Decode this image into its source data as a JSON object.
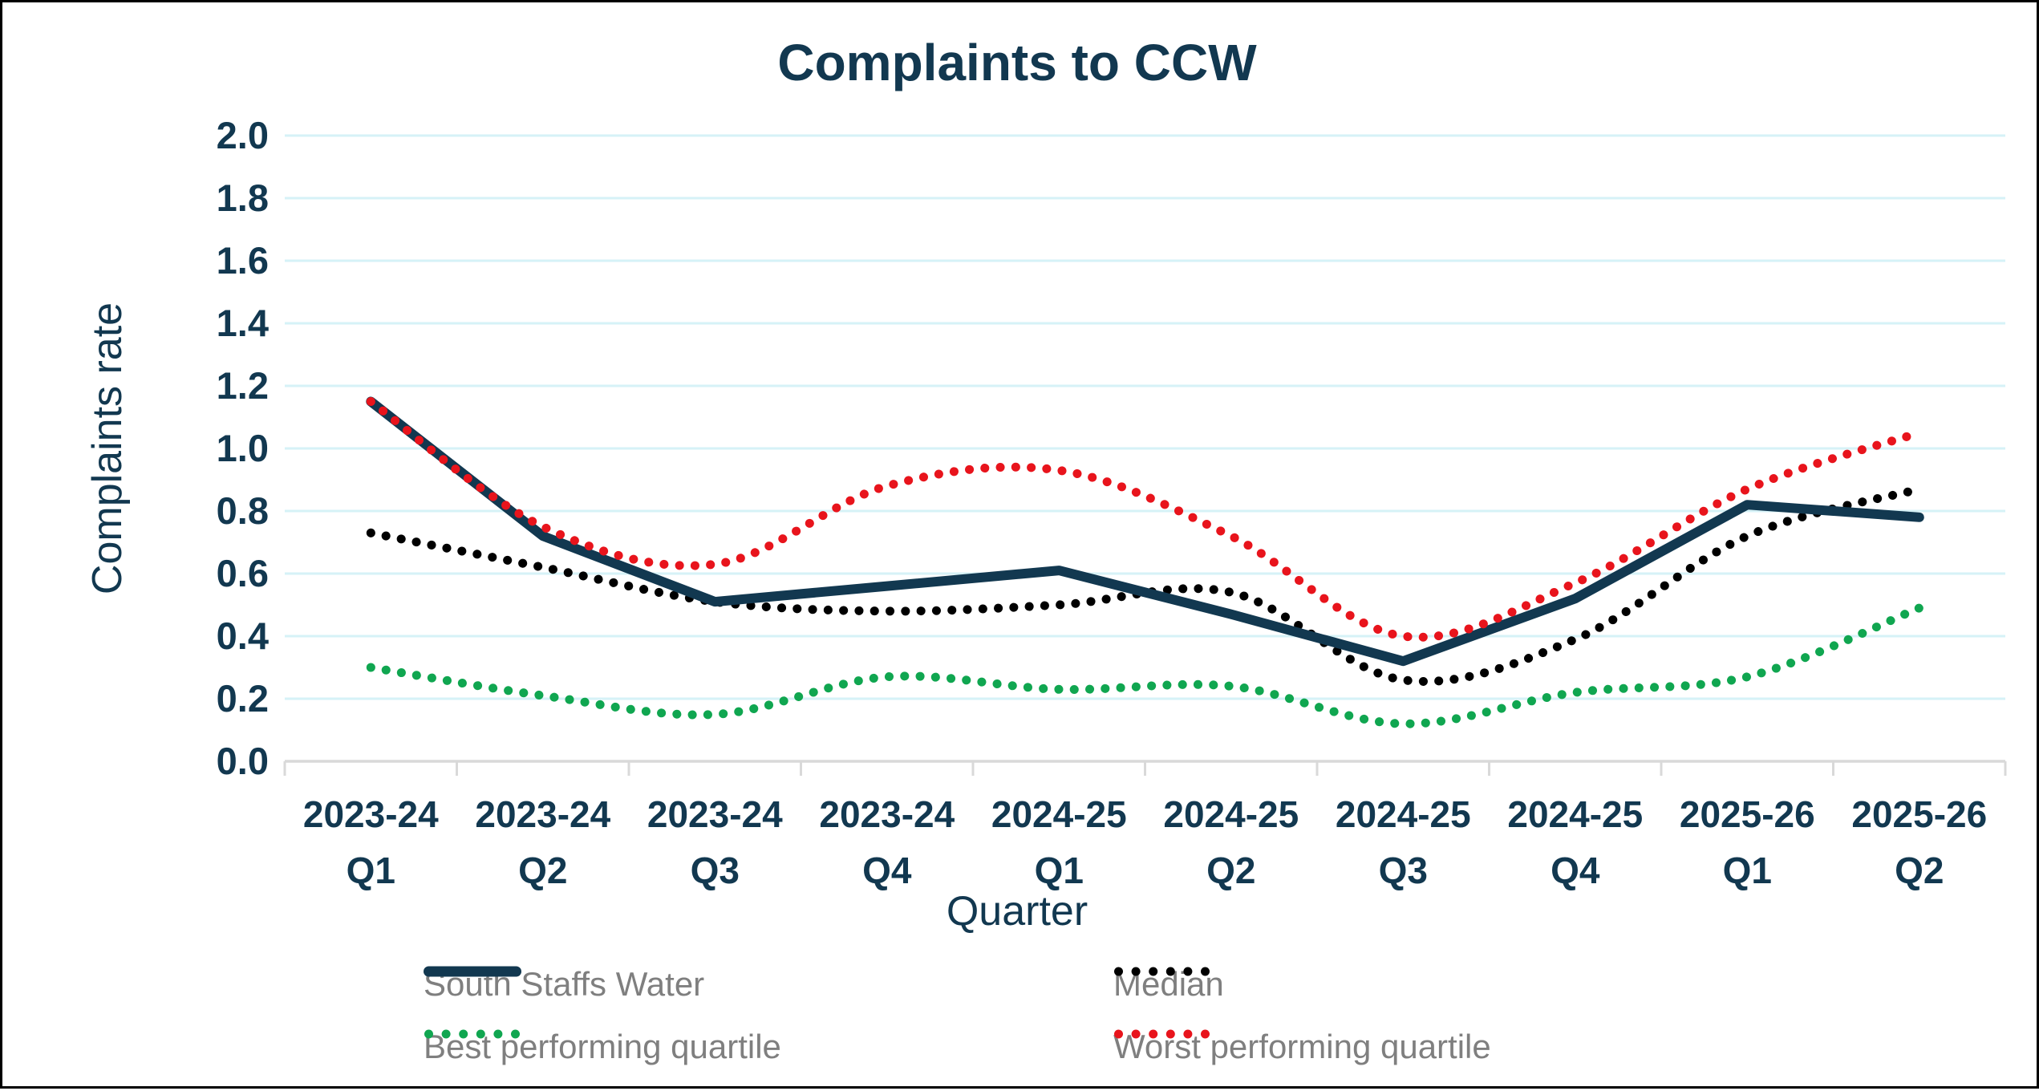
{
  "window": {
    "background": "#ffffff",
    "border_color": "#000000"
  },
  "colors": {
    "navy_text": "#123850",
    "gridline": "#d6f2f7",
    "axis_line": "#d9d9d9",
    "legend_text": "#7f7f7f"
  },
  "chart_data": {
    "type": "line",
    "title": "Complaints to CCW",
    "xlabel": "Quarter",
    "ylabel": "Complaints rate",
    "ylim": [
      0,
      2.0
    ],
    "ytick_step": 0.2,
    "ytick_labels": [
      "0.0",
      "0.2",
      "0.4",
      "0.6",
      "0.8",
      "1.0",
      "1.2",
      "1.4",
      "1.6",
      "1.8",
      "2.0"
    ],
    "grid": true,
    "legend_position": "bottom",
    "categories": [
      {
        "year": "2023-24",
        "quarter": "Q1"
      },
      {
        "year": "2023-24",
        "quarter": "Q2"
      },
      {
        "year": "2023-24",
        "quarter": "Q3"
      },
      {
        "year": "2023-24",
        "quarter": "Q4"
      },
      {
        "year": "2024-25",
        "quarter": "Q1"
      },
      {
        "year": "2024-25",
        "quarter": "Q2"
      },
      {
        "year": "2024-25",
        "quarter": "Q3"
      },
      {
        "year": "2024-25",
        "quarter": "Q4"
      },
      {
        "year": "2025-26",
        "quarter": "Q1"
      },
      {
        "year": "2025-26",
        "quarter": "Q2"
      }
    ],
    "series": [
      {
        "name": "South Staffs Water",
        "color": "#123850",
        "style": "solid",
        "smoothed": false,
        "values": [
          1.15,
          0.72,
          0.51,
          0.56,
          0.61,
          0.47,
          0.32,
          0.52,
          0.82,
          0.78
        ]
      },
      {
        "name": "Median",
        "color": "#000000",
        "style": "dotted",
        "smoothed": true,
        "values": [
          0.73,
          0.62,
          0.51,
          0.48,
          0.5,
          0.54,
          0.26,
          0.39,
          0.72,
          0.87
        ]
      },
      {
        "name": "Best performing quartile",
        "color": "#10a650",
        "style": "dotted",
        "smoothed": true,
        "values": [
          0.3,
          0.21,
          0.15,
          0.27,
          0.23,
          0.24,
          0.12,
          0.22,
          0.27,
          0.49
        ]
      },
      {
        "name": "Worst performing quartile",
        "color": "#e8141c",
        "style": "dotted",
        "smoothed": true,
        "values": [
          1.15,
          0.75,
          0.63,
          0.88,
          0.93,
          0.72,
          0.4,
          0.57,
          0.87,
          1.05
        ]
      }
    ],
    "legend_order": [
      "South Staffs Water",
      "Median",
      "Best performing quartile",
      "Worst performing quartile"
    ]
  }
}
